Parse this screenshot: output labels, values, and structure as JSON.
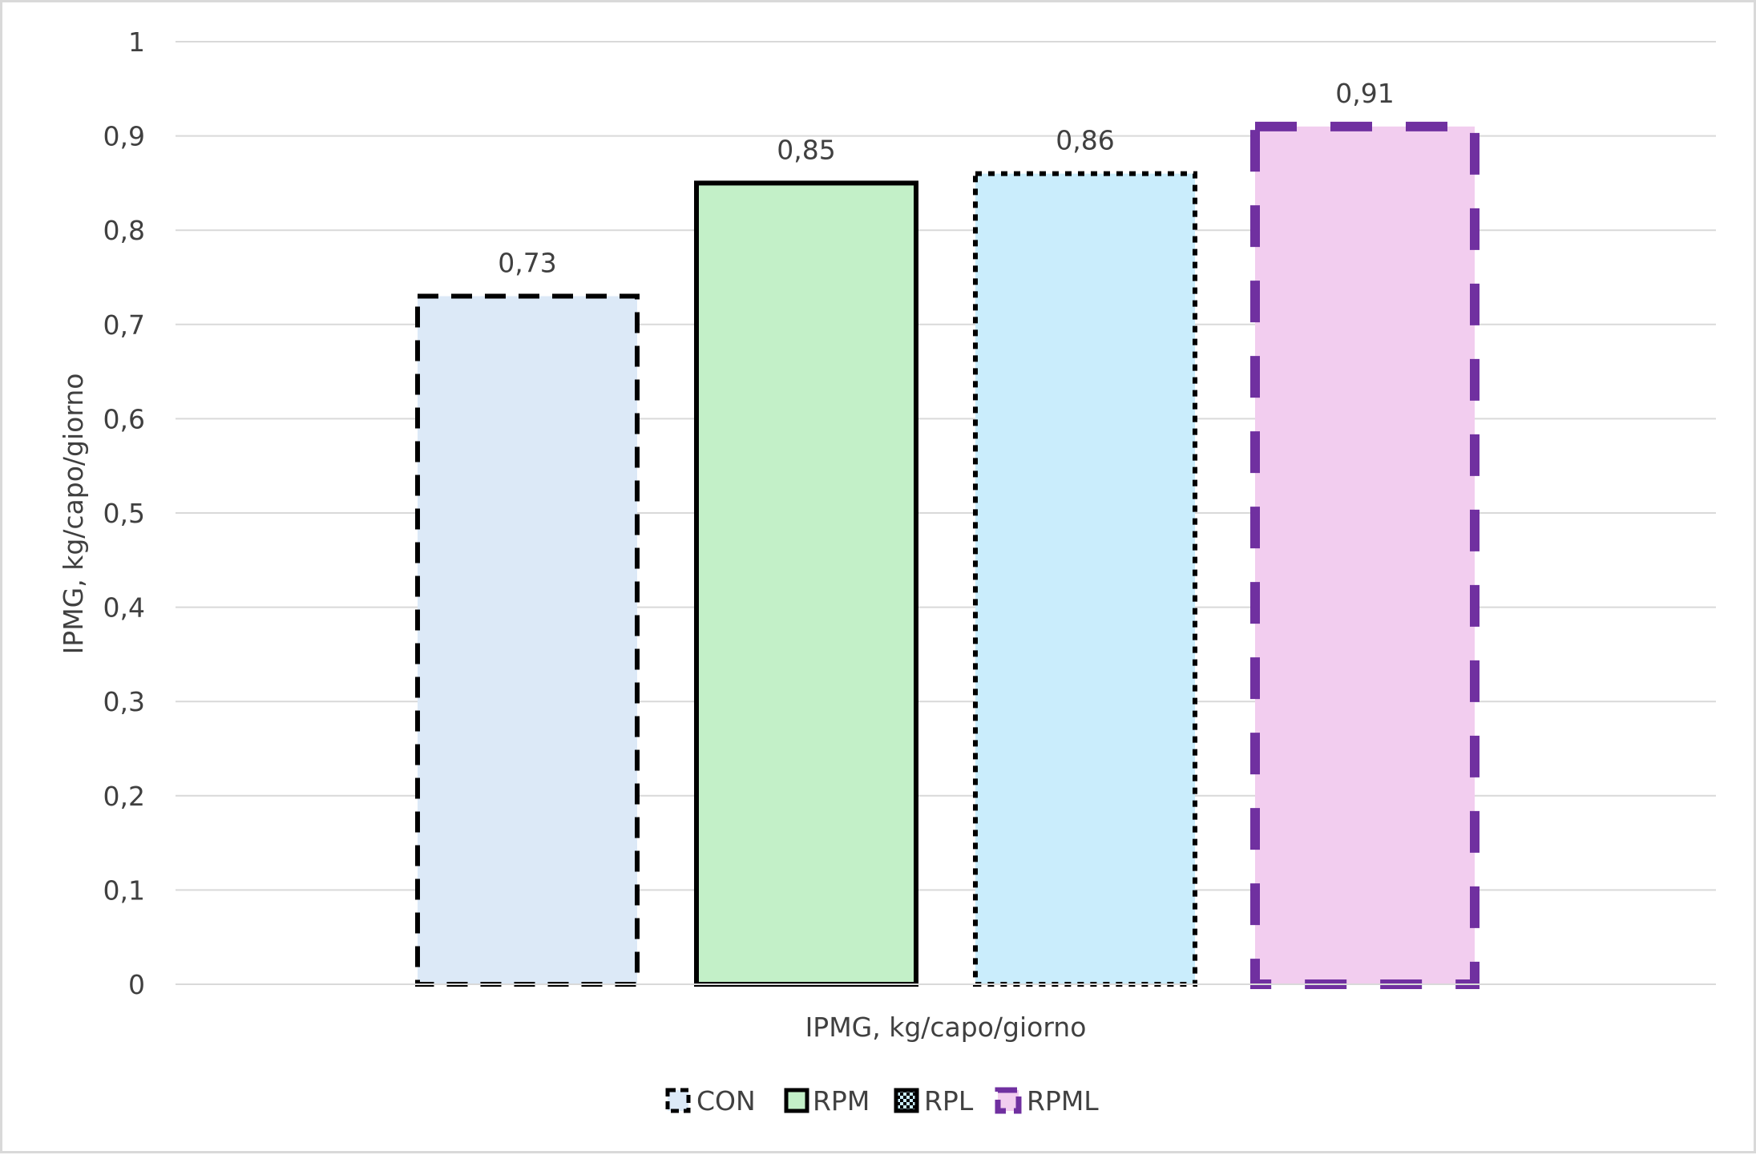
{
  "chart_data": {
    "type": "bar",
    "categories": [
      "CON",
      "RPM",
      "RPL",
      "RPML"
    ],
    "values": [
      0.73,
      0.85,
      0.86,
      0.91
    ],
    "value_labels": [
      "0,73",
      "0,85",
      "0,86",
      "0,91"
    ],
    "xlabel": "IPMG, kg/capo/giorno",
    "ylabel": "IPMG, kg/capo/giorno",
    "ylim": [
      0,
      1
    ],
    "yticks": [
      0,
      0.1,
      0.2,
      0.3,
      0.4,
      0.5,
      0.6,
      0.7,
      0.8,
      0.9,
      1
    ],
    "ytick_labels": [
      "0",
      "0,1",
      "0,2",
      "0,3",
      "0,4",
      "0,5",
      "0,6",
      "0,7",
      "0,8",
      "0,9",
      "1"
    ],
    "grid": true,
    "legend_position": "bottom",
    "legend": [
      "CON",
      "RPM",
      "RPL",
      "RPML"
    ],
    "series_styles": [
      {
        "fill": "#dce9f7",
        "stroke": "#000000",
        "dash": "dashed"
      },
      {
        "fill": "#c3f0c8",
        "stroke": "#000000",
        "dash": "solid"
      },
      {
        "fill": "#caedfc",
        "stroke": "#000000",
        "dash": "dotted"
      },
      {
        "fill": "#f2cdef",
        "stroke": "#7030a0",
        "dash": "long-dash"
      }
    ],
    "gridline_color": "#d9d9d9",
    "text_color": "#404040"
  }
}
